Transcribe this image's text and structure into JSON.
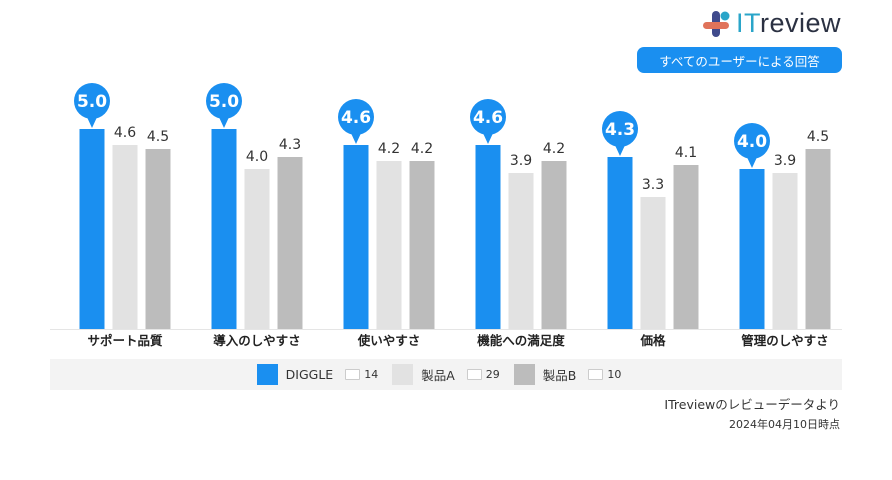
{
  "logo": {
    "text": "ITreview"
  },
  "badge": "すべてのユーザーによる回答",
  "chart_data": {
    "type": "bar",
    "categories": [
      "サポート品質",
      "導入のしやすさ",
      "使いやすさ",
      "機能への満足度",
      "価格",
      "管理のしやすさ"
    ],
    "series": [
      {
        "name": "DIGGLE",
        "values": [
          5.0,
          5.0,
          4.6,
          4.6,
          4.3,
          4.0
        ],
        "color": "#1a8ff0",
        "review_count": "14"
      },
      {
        "name": "製品A",
        "values": [
          4.6,
          4.0,
          4.2,
          3.9,
          3.3,
          3.9
        ],
        "color": "#e2e2e2",
        "review_count": "29"
      },
      {
        "name": "製品B",
        "values": [
          4.5,
          4.3,
          4.2,
          4.2,
          4.1,
          4.5
        ],
        "color": "#bcbcbc",
        "review_count": "10"
      }
    ],
    "ylim": [
      0,
      5
    ],
    "grid": false,
    "legend": "bottom"
  },
  "source": "ITreviewのレビューデータより",
  "date": "2024年04月10日時点"
}
